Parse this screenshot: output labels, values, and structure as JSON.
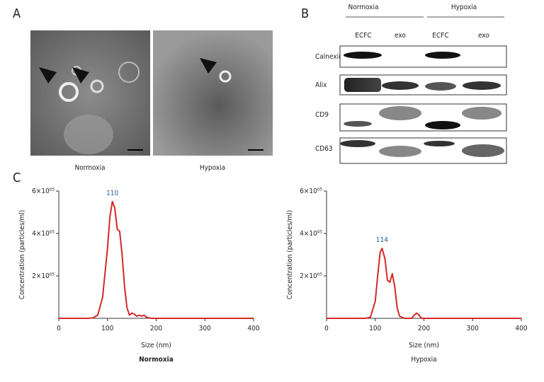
{
  "panel_labels": [
    "A",
    "B",
    "C"
  ],
  "panel_a": {
    "captions": [
      "Normoxia",
      "Hypoxia"
    ]
  },
  "panel_b": {
    "groups": [
      "Normoxia",
      "Hypoxia"
    ],
    "lanes": [
      "ECFC",
      "exo",
      "ECFC",
      "exo"
    ],
    "markers": [
      "Calnexin",
      "Alix",
      "CD9",
      "CD63"
    ]
  },
  "chart_data": [
    {
      "type": "line",
      "subtitle": "Normoxia",
      "subtitle_bold": true,
      "xlabel": "Size (nm)",
      "ylabel": "Concentration (particles/ml)",
      "x": [
        0,
        60,
        70,
        80,
        90,
        100,
        105,
        110,
        115,
        120,
        125,
        130,
        135,
        140,
        145,
        150,
        155,
        160,
        165,
        170,
        175,
        180,
        190,
        400
      ],
      "series": [
        {
          "name": "Normoxia",
          "color": "#d62728",
          "values": [
            0,
            0,
            2000,
            15000,
            100000,
            330000,
            480000,
            550000,
            520000,
            420000,
            410000,
            300000,
            150000,
            50000,
            15000,
            25000,
            20000,
            10000,
            15000,
            10000,
            15000,
            5000,
            0,
            0
          ]
        }
      ],
      "annotations": [
        {
          "text": "110",
          "x": 110
        }
      ],
      "xlim": [
        0,
        400
      ],
      "xticks": [
        0,
        100,
        200,
        300,
        400
      ],
      "ylim": [
        0,
        600000
      ],
      "yticks": [
        {
          "value": 200000,
          "label": "2×10⁰⁵"
        },
        {
          "value": 400000,
          "label": "4×10⁰⁵"
        },
        {
          "value": 600000,
          "label": "6×10⁰⁵"
        }
      ]
    },
    {
      "type": "line",
      "subtitle": "Hypoxia",
      "subtitle_bold": false,
      "xlabel": "Size (nm)",
      "ylabel": "Concentration (particles/ml)",
      "x": [
        0,
        80,
        90,
        100,
        105,
        110,
        114,
        120,
        125,
        130,
        135,
        140,
        145,
        150,
        160,
        175,
        180,
        185,
        190,
        195,
        400
      ],
      "series": [
        {
          "name": "Hypoxia",
          "color": "#d62728",
          "values": [
            0,
            0,
            5000,
            80000,
            200000,
            310000,
            330000,
            280000,
            180000,
            170000,
            210000,
            150000,
            50000,
            10000,
            0,
            0,
            15000,
            25000,
            15000,
            0,
            0
          ]
        }
      ],
      "annotations": [
        {
          "text": "114",
          "x": 114
        }
      ],
      "xlim": [
        0,
        400
      ],
      "xticks": [
        0,
        100,
        200,
        300,
        400
      ],
      "ylim": [
        0,
        600000
      ],
      "yticks": [
        {
          "value": 200000,
          "label": "2×10⁰⁵"
        },
        {
          "value": 400000,
          "label": "4×10⁰⁵"
        },
        {
          "value": 600000,
          "label": "6×10⁰⁵"
        }
      ]
    }
  ]
}
